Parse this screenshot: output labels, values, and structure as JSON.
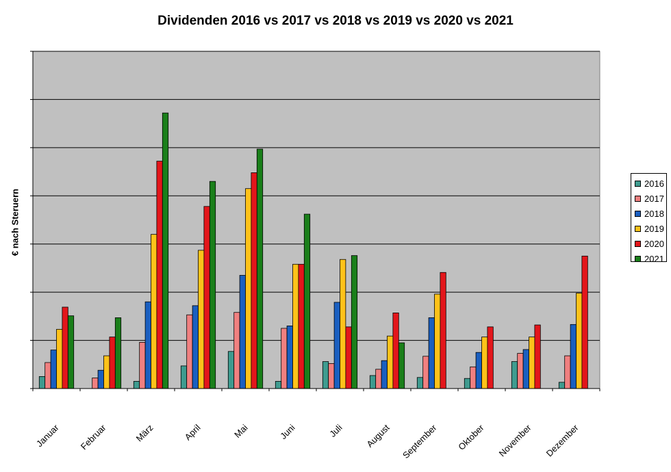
{
  "chart_data": {
    "type": "bar",
    "title": "Dividenden 2016 vs 2017 vs 2018 vs 2019 vs 2020 vs 2021",
    "xlabel": "",
    "ylabel": "€ nach Steruern",
    "ylim": [
      0,
      7
    ],
    "y_tick_labels_shown": false,
    "grid": true,
    "legend_position": "right",
    "categories": [
      "Januar",
      "Februar",
      "März",
      "April",
      "Mai",
      "Juni",
      "Juli",
      "August",
      "September",
      "Oktober",
      "November",
      "Dezember"
    ],
    "series": [
      {
        "name": "2016",
        "color": "#3f9b8f",
        "values": [
          0.25,
          0,
          0.15,
          0.47,
          0.77,
          0.15,
          0.56,
          0.27,
          0.23,
          0.21,
          0.56,
          0.13
        ]
      },
      {
        "name": "2017",
        "color": "#f08080",
        "values": [
          0.54,
          0.22,
          0.96,
          1.53,
          1.58,
          1.25,
          0.52,
          0.4,
          0.67,
          0.45,
          0.73,
          0.68
        ]
      },
      {
        "name": "2018",
        "color": "#1a5fc0",
        "values": [
          0.8,
          0.38,
          1.8,
          1.72,
          2.35,
          1.3,
          1.79,
          0.58,
          1.47,
          0.75,
          0.81,
          1.33
        ]
      },
      {
        "name": "2019",
        "color": "#ffc21a",
        "values": [
          1.23,
          0.68,
          3.2,
          2.87,
          4.15,
          2.58,
          2.68,
          1.09,
          1.96,
          1.07,
          1.07,
          1.98
        ]
      },
      {
        "name": "2020",
        "color": "#e3161b",
        "values": [
          1.69,
          1.07,
          4.72,
          3.78,
          4.48,
          2.58,
          1.28,
          1.57,
          2.41,
          1.28,
          1.32,
          2.75
        ]
      },
      {
        "name": "2021",
        "color": "#1a7f1a",
        "values": [
          1.51,
          1.47,
          5.72,
          4.3,
          4.97,
          3.62,
          2.76,
          0.95,
          null,
          null,
          null,
          null
        ]
      }
    ]
  }
}
